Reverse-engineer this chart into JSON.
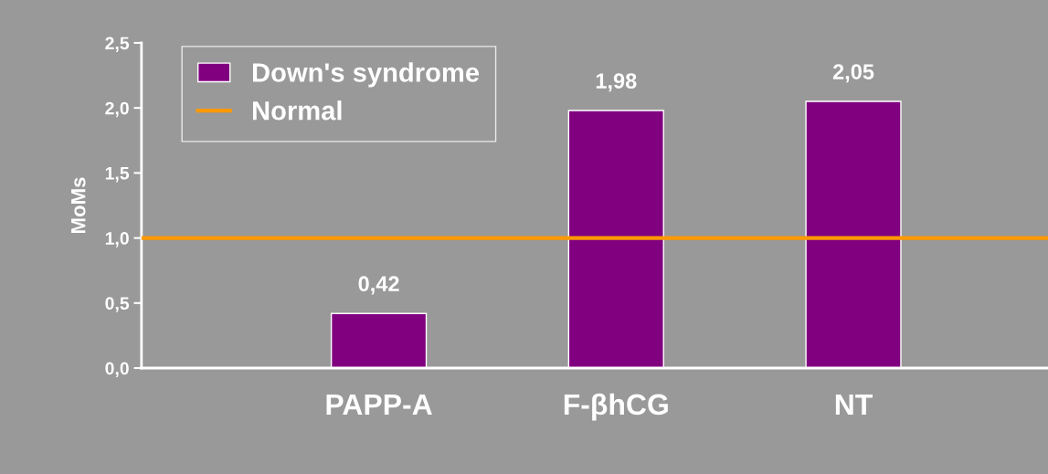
{
  "chart_data": {
    "type": "bar",
    "ylabel": "MoMs",
    "categories": [
      "PAPP-A",
      "F-βhCG",
      "NT"
    ],
    "series": [
      {
        "name": "Down's syndrome",
        "color": "#800080",
        "values": [
          0.42,
          1.98,
          2.05
        ],
        "value_labels": [
          "0,42",
          "1,98",
          "2,05"
        ]
      }
    ],
    "ylim": [
      0,
      2.5
    ],
    "yticks": [
      {
        "value": 0,
        "label": "0,0"
      },
      {
        "value": 0.5,
        "label": "0,5"
      },
      {
        "value": 1,
        "label": "1,0"
      },
      {
        "value": 1.5,
        "label": "1,5"
      },
      {
        "value": 2,
        "label": "2,0"
      },
      {
        "value": 2.5,
        "label": "2,5"
      }
    ],
    "ref_lines": [
      {
        "axis": "y",
        "value": 1,
        "label": "Normal",
        "color": "#ff9900"
      }
    ],
    "legend": "top left",
    "grid": false
  }
}
